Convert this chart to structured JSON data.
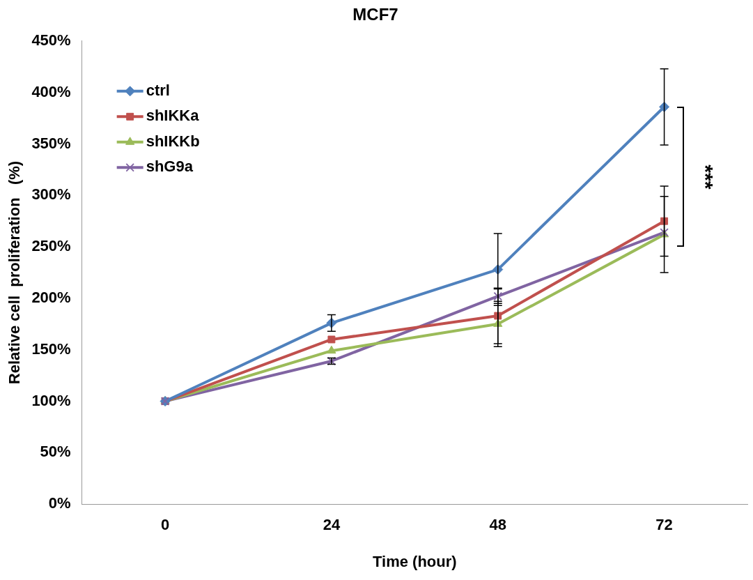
{
  "chart_data": {
    "type": "line",
    "title": "MCF7",
    "xlabel": "Time (hour)",
    "ylabel": "Relative cell  proliferation   (%)",
    "categories": [
      "0",
      "24",
      "48",
      "72"
    ],
    "series": [
      {
        "name": "ctrl",
        "color": "#4f81bd",
        "marker": "diamond",
        "values": [
          100,
          176,
          228,
          386
        ],
        "errors": [
          null,
          8,
          35,
          37
        ]
      },
      {
        "name": "shIKKa",
        "color": "#c0504d",
        "marker": "square",
        "values": [
          100,
          160,
          183,
          275
        ],
        "errors": [
          null,
          null,
          27,
          34
        ]
      },
      {
        "name": "shIKKb",
        "color": "#9bbb59",
        "marker": "triangle",
        "values": [
          100,
          149,
          175,
          262
        ],
        "errors": [
          null,
          null,
          22,
          37
        ]
      },
      {
        "name": "shG9a",
        "color": "#8064a2",
        "marker": "cross",
        "values": [
          100,
          139,
          202,
          264
        ],
        "errors": [
          null,
          3,
          7,
          null
        ]
      }
    ],
    "ylim": [
      0,
      450
    ],
    "yticks": [
      {
        "value": 0,
        "label": "0%"
      },
      {
        "value": 50,
        "label": "50%"
      },
      {
        "value": 100,
        "label": "100%"
      },
      {
        "value": 150,
        "label": "150%"
      },
      {
        "value": 200,
        "label": "200%"
      },
      {
        "value": 250,
        "label": "250%"
      },
      {
        "value": 300,
        "label": "300%"
      },
      {
        "value": 350,
        "label": "350%"
      },
      {
        "value": 400,
        "label": "400%"
      },
      {
        "value": 450,
        "label": "450%"
      }
    ],
    "grid": false,
    "legend": "top left",
    "line_style": "solid",
    "annotations": [
      "***"
    ]
  }
}
